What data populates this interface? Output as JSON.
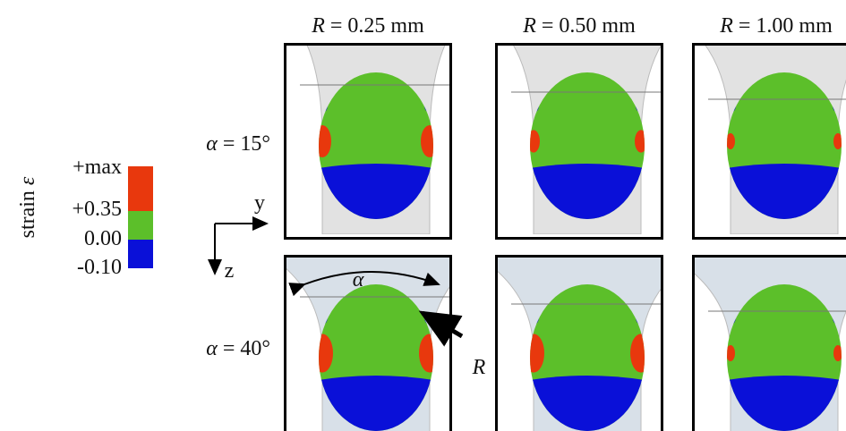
{
  "legend": {
    "title": {
      "text": "strain",
      "symbol": "ε"
    },
    "items": [
      {
        "label": "+max",
        "color": "#e8380d"
      },
      {
        "label": "+0.35",
        "color": "#5cbf2a"
      },
      {
        "label": "0.00",
        "color": "#0a10d8"
      },
      {
        "label": "-0.10"
      }
    ]
  },
  "axes": {
    "horizontal": "y",
    "vertical": "z"
  },
  "columns": [
    {
      "symbol": "R",
      "text": " = 0.25 mm"
    },
    {
      "symbol": "R",
      "text": " = 0.50 mm"
    },
    {
      "symbol": "R",
      "text": " = 1.00 mm"
    }
  ],
  "rows": [
    {
      "symbol": "α",
      "text": " = 15°"
    },
    {
      "symbol": "α",
      "text": " = 40°"
    }
  ],
  "annotations": {
    "angle": "α",
    "radius": "R"
  }
}
